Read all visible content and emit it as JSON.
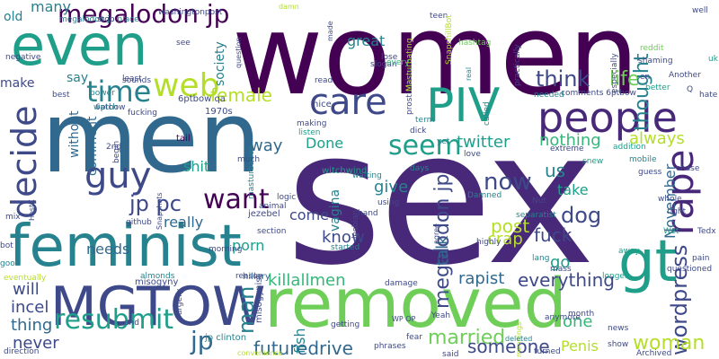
{
  "palette": {
    "dark_purple": "#440154",
    "purple": "#482878",
    "indigo": "#3e4989",
    "blue": "#31688e",
    "teal_blue": "#26828e",
    "teal": "#1f9e89",
    "green": "#35b779",
    "light_green": "#6ece58",
    "yellow_green": "#b5de2b",
    "yellow": "#fde725"
  },
  "words": [
    {
      "text": "women",
      "color": "dark_purple"
    },
    {
      "text": "sex",
      "color": "purple"
    },
    {
      "text": "men",
      "color": "blue"
    },
    {
      "text": "feminist",
      "color": "teal_blue"
    },
    {
      "text": "removed",
      "color": "light_green"
    },
    {
      "text": "MGTOW",
      "color": "indigo"
    },
    {
      "text": "even",
      "color": "teal"
    },
    {
      "text": "gt",
      "color": "teal"
    },
    {
      "text": "PIV",
      "color": "teal"
    },
    {
      "text": "people",
      "color": "purple"
    },
    {
      "text": "care",
      "color": "indigo"
    },
    {
      "text": "time",
      "color": "teal_blue"
    },
    {
      "text": "web",
      "color": "yellow_green"
    },
    {
      "text": "guy",
      "color": "indigo"
    },
    {
      "text": "decide",
      "color": "indigo"
    },
    {
      "text": "rape",
      "color": "purple"
    },
    {
      "text": "megalodon jp",
      "color": "dark_purple"
    },
    {
      "text": "resubmit",
      "color": "teal"
    },
    {
      "text": "seem",
      "color": "teal"
    },
    {
      "text": "want",
      "color": "dark_purple"
    },
    {
      "text": "jp pc",
      "color": "indigo"
    },
    {
      "text": "jp",
      "color": "blue"
    },
    {
      "text": "man",
      "color": "teal_blue"
    },
    {
      "text": "female",
      "color": "yellow_green"
    },
    {
      "text": "megalodon jp",
      "color": "indigo"
    },
    {
      "text": "now",
      "color": "indigo"
    },
    {
      "text": "think",
      "color": "indigo"
    },
    {
      "text": "life",
      "color": "light_green"
    },
    {
      "text": "thought",
      "color": "teal_blue"
    },
    {
      "text": "wordpress",
      "color": "indigo"
    },
    {
      "text": "November",
      "color": "blue"
    },
    {
      "text": "dog",
      "color": "indigo"
    },
    {
      "text": "futuredrive",
      "color": "blue"
    },
    {
      "text": "married",
      "color": "light_green"
    },
    {
      "text": "everything",
      "color": "indigo"
    },
    {
      "text": "woman",
      "color": "yellow_green"
    },
    {
      "text": "someone",
      "color": "indigo"
    },
    {
      "text": "killallmen",
      "color": "green"
    },
    {
      "text": "incel",
      "color": "indigo"
    },
    {
      "text": "will",
      "color": "indigo"
    },
    {
      "text": "fuck",
      "color": "indigo"
    },
    {
      "text": "us",
      "color": "teal_blue"
    },
    {
      "text": "nothing",
      "color": "green"
    },
    {
      "text": "always",
      "color": "yellow_green"
    },
    {
      "text": "twitter",
      "color": "teal"
    },
    {
      "text": "thing",
      "color": "blue"
    },
    {
      "text": "never",
      "color": "indigo"
    },
    {
      "text": "rapist",
      "color": "blue"
    },
    {
      "text": "post",
      "color": "yellow_green"
    },
    {
      "text": "crap",
      "color": "yellow_green"
    },
    {
      "text": "go",
      "color": "teal"
    },
    {
      "text": "one",
      "color": "green"
    },
    {
      "text": "Penis",
      "color": "yellow_green"
    },
    {
      "text": "talk",
      "color": "blue"
    },
    {
      "text": "know",
      "color": "indigo"
    },
    {
      "text": "porn",
      "color": "teal"
    },
    {
      "text": "really",
      "color": "blue"
    },
    {
      "text": "needs",
      "color": "blue"
    },
    {
      "text": "shit",
      "color": "teal"
    },
    {
      "text": "way",
      "color": "blue"
    },
    {
      "text": "Done",
      "color": "teal"
    },
    {
      "text": "give",
      "color": "teal_blue"
    },
    {
      "text": "come",
      "color": "indigo"
    },
    {
      "text": "take",
      "color": "teal"
    },
    {
      "text": "great",
      "color": "teal_blue"
    },
    {
      "text": "many",
      "color": "teal_blue"
    },
    {
      "text": "old",
      "color": "teal_blue"
    },
    {
      "text": "make",
      "color": "indigo"
    },
    {
      "text": "say",
      "color": "teal_blue"
    },
    {
      "text": "without",
      "color": "blue"
    },
    {
      "text": "comment",
      "color": "blue"
    },
    {
      "text": "society",
      "color": "teal_blue"
    },
    {
      "text": "fish",
      "color": "teal_blue"
    },
    {
      "text": "vagina",
      "color": "teal_blue"
    },
    {
      "text": "jp clinton",
      "color": "teal_blue"
    },
    {
      "text": "hillary",
      "color": "blue"
    },
    {
      "text": "misogyny",
      "color": "indigo"
    },
    {
      "text": "misogynist",
      "color": "indigo"
    },
    {
      "text": "jezebel",
      "color": "indigo"
    },
    {
      "text": "tail",
      "color": "dark_purple"
    },
    {
      "text": "witchwind",
      "color": "teal"
    },
    {
      "text": "megalodon jp place",
      "color": "teal_blue"
    },
    {
      "text": "washingtonpost",
      "color": "indigo"
    },
    {
      "text": "negative",
      "color": "indigo"
    },
    {
      "text": "6ptbow qa",
      "color": "indigo"
    },
    {
      "text": "6ptbow",
      "color": "indigo"
    },
    {
      "text": "1970s",
      "color": "indigo"
    },
    {
      "text": "nice",
      "color": "indigo"
    },
    {
      "text": "making",
      "color": "indigo"
    },
    {
      "text": "listen",
      "color": "teal"
    },
    {
      "text": "lose",
      "color": "indigo"
    },
    {
      "text": "slogan",
      "color": "indigo"
    },
    {
      "text": "every",
      "color": "green"
    },
    {
      "text": "hashtag",
      "color": "light_green"
    },
    {
      "text": "teen",
      "color": "indigo"
    },
    {
      "text": "SnapshillBot",
      "color": "yellow_green"
    },
    {
      "text": "practically",
      "color": "indigo"
    },
    {
      "text": "prostitution",
      "color": "indigo"
    },
    {
      "text": "reddit",
      "color": "light_green"
    },
    {
      "text": "shaming",
      "color": "indigo"
    },
    {
      "text": "especially",
      "color": "indigo"
    },
    {
      "text": "Another",
      "color": "indigo"
    },
    {
      "text": "better",
      "color": "teal"
    },
    {
      "text": "hate",
      "color": "indigo"
    },
    {
      "text": "comments 6ptbow",
      "color": "indigo"
    },
    {
      "text": "needed",
      "color": "teal_blue"
    },
    {
      "text": "called",
      "color": "teal_blue"
    },
    {
      "text": "term",
      "color": "teal_blue"
    },
    {
      "text": "dick",
      "color": "indigo"
    },
    {
      "text": "yet",
      "color": "teal_blue"
    },
    {
      "text": "addition",
      "color": "teal"
    },
    {
      "text": "extreme",
      "color": "indigo"
    },
    {
      "text": "mobile",
      "color": "teal_blue"
    },
    {
      "text": "snew",
      "color": "teal"
    },
    {
      "text": "guess",
      "color": "indigo"
    },
    {
      "text": "chase",
      "color": "indigo"
    },
    {
      "text": "whole",
      "color": "indigo"
    },
    {
      "text": "right",
      "color": "indigo"
    },
    {
      "text": "Tedx",
      "color": "indigo"
    },
    {
      "text": "Wet",
      "color": "teal"
    },
    {
      "text": "pain",
      "color": "indigo"
    },
    {
      "text": "questioned",
      "color": "indigo"
    },
    {
      "text": "longer",
      "color": "teal"
    },
    {
      "text": "away",
      "color": "teal"
    },
    {
      "text": "lang",
      "color": "teal_blue"
    },
    {
      "text": "mass",
      "color": "indigo"
    },
    {
      "text": "separatist",
      "color": "teal_blue"
    },
    {
      "text": "Damned",
      "color": "teal_blue"
    },
    {
      "text": "Nut",
      "color": "indigo"
    },
    {
      "text": "days",
      "color": "teal_blue"
    },
    {
      "text": "love",
      "color": "indigo"
    },
    {
      "text": "waiting",
      "color": "teal_blue"
    },
    {
      "text": "using",
      "color": "indigo"
    },
    {
      "text": "hand",
      "color": "indigo"
    },
    {
      "text": "logic",
      "color": "indigo"
    },
    {
      "text": "animal",
      "color": "indigo"
    },
    {
      "text": "masturbation",
      "color": "teal_blue"
    },
    {
      "text": "much",
      "color": "indigo"
    },
    {
      "text": "begin",
      "color": "indigo"
    },
    {
      "text": "2nd",
      "color": "indigo"
    },
    {
      "text": "mix",
      "color": "indigo"
    },
    {
      "text": "HostX",
      "color": "indigo"
    },
    {
      "text": "github",
      "color": "indigo"
    },
    {
      "text": "Snapshots",
      "color": "indigo"
    },
    {
      "text": "bot",
      "color": "indigo"
    },
    {
      "text": "good",
      "color": "teal_blue"
    },
    {
      "text": "eventually",
      "color": "yellow_green"
    },
    {
      "text": "almonds",
      "color": "teal_blue"
    },
    {
      "text": "surgery",
      "color": "indigo"
    },
    {
      "text": "end",
      "color": "indigo"
    },
    {
      "text": "direction",
      "color": "indigo"
    },
    {
      "text": "morning",
      "color": "indigo"
    },
    {
      "text": "section",
      "color": "indigo"
    },
    {
      "text": "started",
      "color": "teal_blue"
    },
    {
      "text": "lesbian",
      "color": "indigo"
    },
    {
      "text": "reason",
      "color": "indigo"
    },
    {
      "text": "damage",
      "color": "indigo"
    },
    {
      "text": "getting",
      "color": "indigo"
    },
    {
      "text": "Yeah",
      "color": "indigo"
    },
    {
      "text": "phrases",
      "color": "indigo"
    },
    {
      "text": "fear",
      "color": "indigo"
    },
    {
      "text": "said",
      "color": "indigo"
    },
    {
      "text": "meanings",
      "color": "yellow_green"
    },
    {
      "text": "turned",
      "color": "indigo"
    },
    {
      "text": "show",
      "color": "indigo"
    },
    {
      "text": "anymore",
      "color": "indigo"
    },
    {
      "text": "month",
      "color": "indigo"
    },
    {
      "text": "news",
      "color": "indigo"
    },
    {
      "text": "Archived",
      "color": "indigo"
    },
    {
      "text": "deleted",
      "color": "teal_blue"
    },
    {
      "text": "convenience",
      "color": "yellow_green"
    },
    {
      "text": "highly",
      "color": "indigo"
    },
    {
      "text": "agree",
      "color": "indigo"
    },
    {
      "text": "see",
      "color": "indigo"
    },
    {
      "text": "watch",
      "color": "teal_blue"
    },
    {
      "text": "power",
      "color": "teal_blue"
    },
    {
      "text": "fucking",
      "color": "indigo"
    },
    {
      "text": "sounds",
      "color": "indigo"
    },
    {
      "text": "least",
      "color": "indigo"
    },
    {
      "text": "best",
      "color": "indigo"
    },
    {
      "text": "question",
      "color": "indigo"
    },
    {
      "text": "made",
      "color": "indigo"
    },
    {
      "text": "stop",
      "color": "indigo"
    },
    {
      "text": "damn",
      "color": "yellow_green"
    },
    {
      "text": "read",
      "color": "indigo"
    },
    {
      "text": "Masturbating",
      "color": "yellow_green"
    },
    {
      "text": "real",
      "color": "teal_blue"
    },
    {
      "text": "well",
      "color": "indigo"
    },
    {
      "text": "uk",
      "color": "teal"
    },
    {
      "text": "en",
      "color": "indigo"
    },
    {
      "text": "Q",
      "color": "indigo"
    },
    {
      "text": "WP OP",
      "color": "indigo"
    }
  ]
}
